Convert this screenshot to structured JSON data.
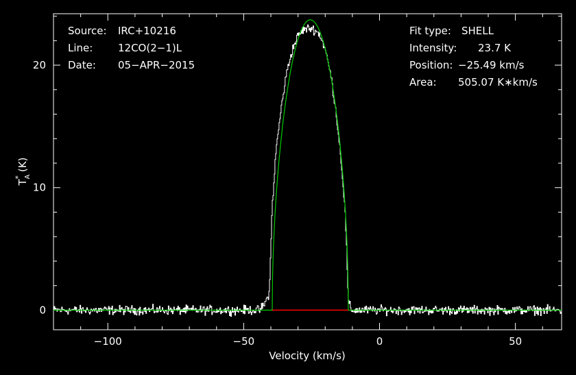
{
  "chart_data": {
    "type": "line",
    "xlabel": "Velocity (km/s)",
    "ylabel_main": "T",
    "ylabel_sup": "*",
    "ylabel_sub": "A",
    "ylabel_unit": "(K)",
    "xlim": [
      -120,
      67
    ],
    "ylim": [
      -1.6,
      24.2
    ],
    "x_ticks": [
      -100,
      -50,
      0,
      50
    ],
    "x_tick_labels": [
      "−100",
      "−50",
      "0",
      "50"
    ],
    "y_ticks": [
      0,
      10,
      20
    ],
    "y_tick_labels": [
      "0",
      "10",
      "20"
    ],
    "legend_position": "none",
    "info_left": [
      {
        "key": "Source:",
        "value": "IRC+10216"
      },
      {
        "key": "Line:",
        "value": "12CO(2−1)L"
      },
      {
        "key": "Date:",
        "value": "05−APR−2015"
      }
    ],
    "info_right": [
      {
        "key": "Fit type:",
        "value": "SHELL"
      },
      {
        "key": "Intensity:",
        "value": "23.7 K"
      },
      {
        "key": "Position:",
        "value": "−25.49 km/s"
      },
      {
        "key": "Area:",
        "value": "505.07 K∗km/s"
      }
    ],
    "fit": {
      "type": "shell",
      "center": -25.49,
      "peak": 23.7,
      "vmin": -39.5,
      "vmax": -11.5,
      "color": "#00cc00"
    },
    "baseline": {
      "x": [
        -39.5,
        -11.5
      ],
      "y": 0,
      "color": "#ff0000"
    },
    "spectrum": {
      "color": "#ffffff",
      "noise": 0.18,
      "x": [
        -120,
        -44,
        -42,
        -40.5,
        -39.5,
        -38,
        -36,
        -34,
        -32,
        -30,
        -28,
        -26,
        -25,
        -24,
        -22,
        -20,
        -18,
        -16,
        -14,
        -12.5,
        -11.5,
        -10.5,
        67
      ],
      "y": [
        0,
        0,
        0.6,
        1.5,
        8.5,
        13.2,
        16.8,
        19.6,
        21.3,
        22.4,
        22.9,
        23.0,
        23.0,
        22.9,
        22.5,
        21.3,
        19.3,
        16.2,
        12.0,
        7.5,
        0.8,
        0,
        0
      ]
    }
  }
}
